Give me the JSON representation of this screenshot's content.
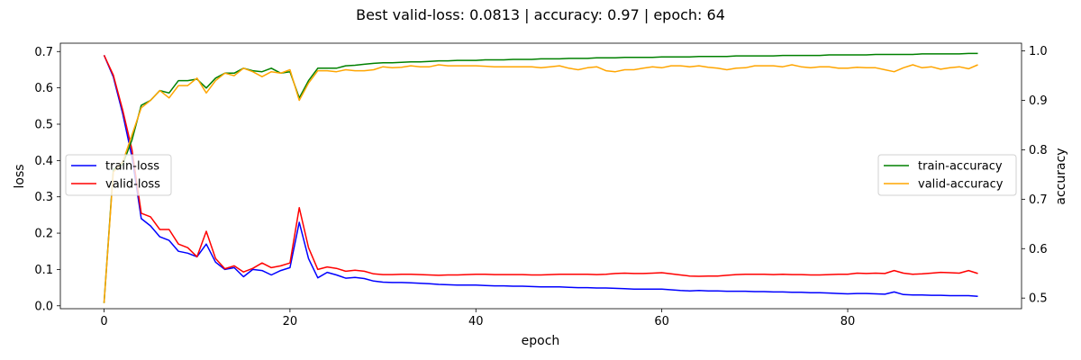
{
  "chart_data": {
    "type": "line",
    "title": "Best valid-loss: 0.0813 | accuracy: 0.97 | epoch: 64",
    "xlabel": "epoch",
    "ylabel_left": "loss",
    "ylabel_right": "accuracy",
    "xlim": [
      -4.7,
      98.7
    ],
    "ylim_left": [
      -0.008,
      0.723
    ],
    "ylim_right": [
      0.4785,
      1.0157
    ],
    "xticks": [
      "0",
      "20",
      "40",
      "60",
      "80"
    ],
    "yticks_left": [
      "0.0",
      "0.1",
      "0.2",
      "0.3",
      "0.4",
      "0.5",
      "0.6",
      "0.7"
    ],
    "yticks_right": [
      "0.5",
      "0.6",
      "0.7",
      "0.8",
      "0.9",
      "1.0"
    ],
    "legend_left": {
      "placement": "center-left",
      "entries": [
        "train-loss",
        "valid-loss"
      ]
    },
    "legend_right": {
      "placement": "center-right",
      "entries": [
        "train-accuracy",
        "valid-accuracy"
      ]
    },
    "x": [
      0,
      1,
      2,
      3,
      4,
      5,
      6,
      7,
      8,
      9,
      10,
      11,
      12,
      13,
      14,
      15,
      16,
      17,
      18,
      19,
      20,
      21,
      22,
      23,
      24,
      25,
      26,
      27,
      28,
      29,
      30,
      31,
      32,
      33,
      34,
      35,
      36,
      37,
      38,
      39,
      40,
      41,
      42,
      43,
      44,
      45,
      46,
      47,
      48,
      49,
      50,
      51,
      52,
      53,
      54,
      55,
      56,
      57,
      58,
      59,
      60,
      61,
      62,
      63,
      64,
      65,
      66,
      67,
      68,
      69,
      70,
      71,
      72,
      73,
      74,
      75,
      76,
      77,
      78,
      79,
      80,
      81,
      82,
      83,
      84,
      85,
      86,
      87,
      88,
      89,
      90,
      91,
      92,
      93,
      94
    ],
    "series": [
      {
        "name": "train-loss",
        "axis": "left",
        "color": "#0000ff",
        "values": [
          0.69,
          0.63,
          0.53,
          0.41,
          0.24,
          0.22,
          0.19,
          0.18,
          0.15,
          0.145,
          0.135,
          0.17,
          0.12,
          0.1,
          0.105,
          0.08,
          0.1,
          0.097,
          0.085,
          0.097,
          0.105,
          0.23,
          0.13,
          0.077,
          0.092,
          0.085,
          0.076,
          0.078,
          0.075,
          0.068,
          0.065,
          0.064,
          0.064,
          0.063,
          0.062,
          0.061,
          0.059,
          0.058,
          0.057,
          0.057,
          0.057,
          0.056,
          0.055,
          0.055,
          0.054,
          0.054,
          0.053,
          0.052,
          0.052,
          0.052,
          0.051,
          0.05,
          0.05,
          0.049,
          0.049,
          0.048,
          0.047,
          0.046,
          0.046,
          0.046,
          0.046,
          0.044,
          0.042,
          0.041,
          0.042,
          0.041,
          0.041,
          0.04,
          0.04,
          0.04,
          0.039,
          0.039,
          0.038,
          0.038,
          0.037,
          0.037,
          0.036,
          0.036,
          0.035,
          0.034,
          0.033,
          0.034,
          0.034,
          0.033,
          0.032,
          0.038,
          0.031,
          0.03,
          0.03,
          0.029,
          0.029,
          0.028,
          0.028,
          0.028,
          0.026
        ]
      },
      {
        "name": "valid-loss",
        "axis": "left",
        "color": "#ff0000",
        "values": [
          0.69,
          0.635,
          0.54,
          0.43,
          0.255,
          0.245,
          0.21,
          0.21,
          0.17,
          0.16,
          0.135,
          0.205,
          0.13,
          0.102,
          0.11,
          0.093,
          0.103,
          0.118,
          0.105,
          0.11,
          0.118,
          0.27,
          0.16,
          0.1,
          0.107,
          0.103,
          0.095,
          0.098,
          0.095,
          0.088,
          0.086,
          0.086,
          0.087,
          0.087,
          0.086,
          0.085,
          0.084,
          0.085,
          0.085,
          0.086,
          0.087,
          0.087,
          0.086,
          0.086,
          0.086,
          0.086,
          0.085,
          0.085,
          0.086,
          0.087,
          0.087,
          0.087,
          0.087,
          0.086,
          0.087,
          0.089,
          0.09,
          0.089,
          0.089,
          0.09,
          0.091,
          0.088,
          0.085,
          0.082,
          0.0813,
          0.082,
          0.082,
          0.084,
          0.086,
          0.087,
          0.087,
          0.087,
          0.086,
          0.087,
          0.086,
          0.086,
          0.085,
          0.085,
          0.086,
          0.087,
          0.087,
          0.09,
          0.089,
          0.09,
          0.089,
          0.097,
          0.09,
          0.087,
          0.088,
          0.09,
          0.092,
          0.091,
          0.09,
          0.097,
          0.089
        ]
      },
      {
        "name": "train-accuracy",
        "axis": "right",
        "color": "#008000",
        "values": [
          0.49,
          0.76,
          0.77,
          0.82,
          0.89,
          0.9,
          0.92,
          0.915,
          0.94,
          0.94,
          0.943,
          0.925,
          0.945,
          0.955,
          0.955,
          0.965,
          0.96,
          0.958,
          0.965,
          0.955,
          0.958,
          0.905,
          0.94,
          0.965,
          0.965,
          0.965,
          0.97,
          0.971,
          0.973,
          0.975,
          0.976,
          0.976,
          0.977,
          0.978,
          0.978,
          0.979,
          0.98,
          0.98,
          0.981,
          0.981,
          0.981,
          0.982,
          0.982,
          0.982,
          0.983,
          0.983,
          0.983,
          0.984,
          0.984,
          0.984,
          0.985,
          0.985,
          0.985,
          0.986,
          0.986,
          0.986,
          0.987,
          0.987,
          0.987,
          0.987,
          0.988,
          0.988,
          0.988,
          0.988,
          0.989,
          0.989,
          0.989,
          0.989,
          0.99,
          0.99,
          0.99,
          0.99,
          0.99,
          0.991,
          0.991,
          0.991,
          0.991,
          0.991,
          0.992,
          0.992,
          0.992,
          0.992,
          0.992,
          0.993,
          0.993,
          0.993,
          0.993,
          0.993,
          0.994,
          0.994,
          0.994,
          0.994,
          0.994,
          0.995,
          0.995
        ]
      },
      {
        "name": "valid-accuracy",
        "axis": "right",
        "color": "#ffa500",
        "values": [
          0.49,
          0.755,
          0.775,
          0.83,
          0.885,
          0.9,
          0.92,
          0.905,
          0.93,
          0.93,
          0.945,
          0.915,
          0.94,
          0.955,
          0.95,
          0.965,
          0.958,
          0.948,
          0.958,
          0.955,
          0.962,
          0.9,
          0.935,
          0.96,
          0.96,
          0.958,
          0.962,
          0.96,
          0.96,
          0.962,
          0.968,
          0.966,
          0.967,
          0.97,
          0.968,
          0.968,
          0.972,
          0.97,
          0.97,
          0.97,
          0.97,
          0.969,
          0.968,
          0.968,
          0.968,
          0.968,
          0.968,
          0.966,
          0.968,
          0.97,
          0.965,
          0.962,
          0.966,
          0.968,
          0.96,
          0.958,
          0.962,
          0.962,
          0.965,
          0.968,
          0.966,
          0.97,
          0.97,
          0.968,
          0.97,
          0.967,
          0.965,
          0.962,
          0.965,
          0.966,
          0.97,
          0.97,
          0.97,
          0.968,
          0.972,
          0.968,
          0.966,
          0.968,
          0.968,
          0.965,
          0.965,
          0.967,
          0.966,
          0.966,
          0.962,
          0.958,
          0.966,
          0.972,
          0.966,
          0.968,
          0.963,
          0.966,
          0.968,
          0.964,
          0.972
        ]
      }
    ]
  }
}
